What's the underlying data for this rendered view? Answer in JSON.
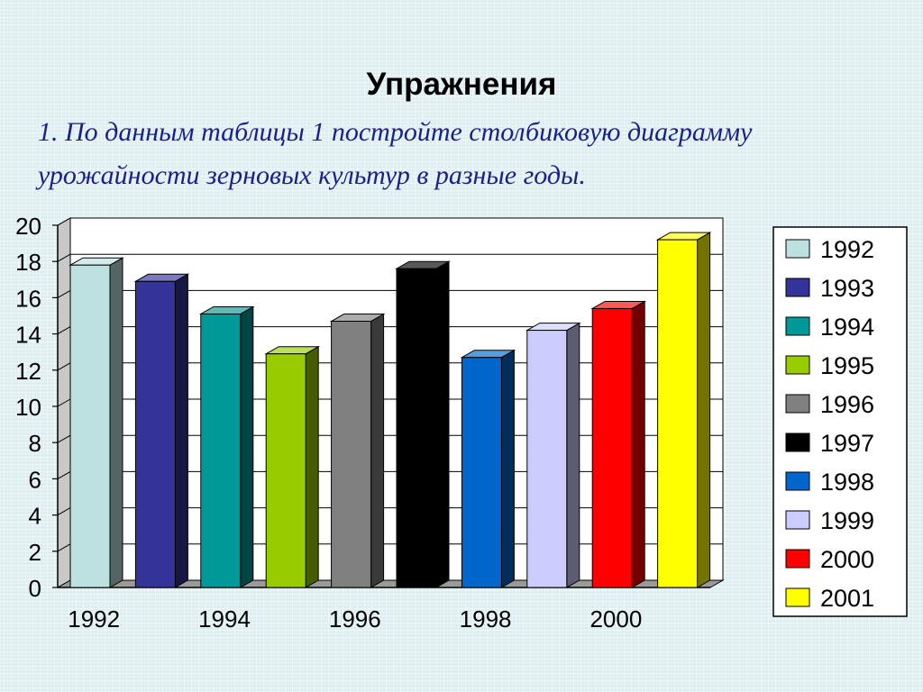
{
  "slide": {
    "title": "Упражнения",
    "task_line_1": "1. По данным таблицы 1 постройте столбиковую диаграмму",
    "task_line_2": "урожайности зерновых культур в разные годы."
  },
  "chart_data": {
    "type": "bar",
    "style": "3d-column",
    "categories": [
      "1992",
      "1993",
      "1994",
      "1995",
      "1996",
      "1997",
      "1998",
      "1999",
      "2000",
      "2001"
    ],
    "values": [
      17.8,
      16.9,
      15.1,
      12.9,
      14.7,
      17.6,
      12.7,
      14.2,
      15.4,
      19.2
    ],
    "colors": [
      "#bde0e0",
      "#333399",
      "#009999",
      "#99cc00",
      "#808080",
      "#000000",
      "#0066cc",
      "#ccccff",
      "#ff0000",
      "#ffff00"
    ],
    "x_tick_labels": [
      "1992",
      "1994",
      "1996",
      "1998",
      "2000"
    ],
    "y_ticks": [
      "0",
      "2",
      "4",
      "6",
      "8",
      "10",
      "12",
      "14",
      "16",
      "18",
      "20"
    ],
    "ylim": [
      0,
      20
    ],
    "grid": true,
    "legend_position": "right",
    "title": "",
    "xlabel": "",
    "ylabel": ""
  }
}
